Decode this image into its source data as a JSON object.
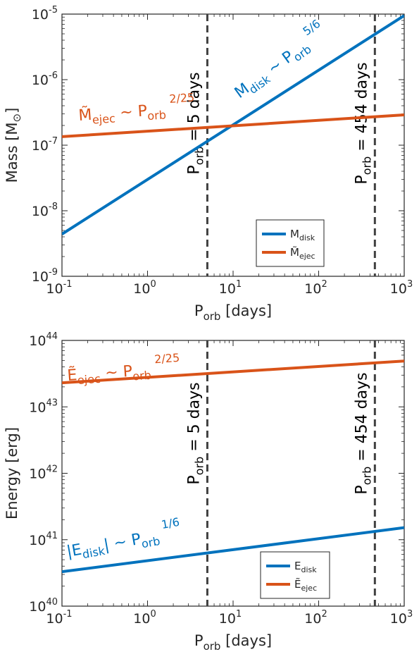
{
  "colors": {
    "disk": "#0072BD",
    "ejec": "#D95319",
    "vline": "#404040",
    "axis": "#262626"
  },
  "chart_data": [
    {
      "type": "line",
      "x_scale": "log",
      "y_scale": "log",
      "xlim": [
        0.1,
        1000
      ],
      "ylim": [
        1e-09,
        1e-05
      ],
      "x_ticks": [
        0.1,
        1,
        10,
        100,
        1000
      ],
      "x_tick_labels": [
        {
          "base": "10",
          "exp": "-1"
        },
        {
          "base": "10",
          "exp": "0"
        },
        {
          "base": "10",
          "exp": "1"
        },
        {
          "base": "10",
          "exp": "2"
        },
        {
          "base": "10",
          "exp": "3"
        }
      ],
      "y_ticks": [
        1e-09,
        1e-08,
        1e-07,
        1e-06,
        1e-05
      ],
      "y_tick_labels": [
        {
          "base": "10",
          "exp": "-9"
        },
        {
          "base": "10",
          "exp": "-8"
        },
        {
          "base": "10",
          "exp": "-7"
        },
        {
          "base": "10",
          "exp": "-6"
        },
        {
          "base": "10",
          "exp": "-5"
        }
      ],
      "xlabel": {
        "main": "P",
        "sub": "orb",
        "rest": " [days]"
      },
      "ylabel": {
        "main": "Mass [M",
        "sub": "⊙",
        "rest": "]"
      },
      "series": [
        {
          "name": {
            "main": "M",
            "sub": "disk"
          },
          "color_key": "disk",
          "x": [
            0.1,
            1000
          ],
          "y": [
            4.4e-09,
            9.5e-06
          ],
          "annotation": {
            "main": "M",
            "sub": "disk",
            "mid": " ~ P",
            "sub2": "orb",
            "sup": "5/6"
          }
        },
        {
          "name": {
            "main": "M̃",
            "sub": "ejec"
          },
          "color_key": "ejec",
          "x": [
            0.1,
            1000
          ],
          "y": [
            1.35e-07,
            2.9e-07
          ],
          "annotation": {
            "main": "M̃",
            "sub": "ejec",
            "mid": " ~ P",
            "sub2": "orb",
            "sup": "2/25"
          }
        }
      ],
      "vlines": [
        {
          "x": 5,
          "label": {
            "main": "P",
            "sub": "orb",
            "rest": " = 5 days"
          }
        },
        {
          "x": 454,
          "label": {
            "main": "P",
            "sub": "orb",
            "rest": " = 454 days"
          }
        }
      ],
      "legend_position": "lower-right",
      "grid": false
    },
    {
      "type": "line",
      "x_scale": "log",
      "y_scale": "log",
      "xlim": [
        0.1,
        1000
      ],
      "ylim": [
        1e+40,
        1e+44
      ],
      "x_ticks": [
        0.1,
        1,
        10,
        100,
        1000
      ],
      "x_tick_labels": [
        {
          "base": "10",
          "exp": "-1"
        },
        {
          "base": "10",
          "exp": "0"
        },
        {
          "base": "10",
          "exp": "1"
        },
        {
          "base": "10",
          "exp": "2"
        },
        {
          "base": "10",
          "exp": "3"
        }
      ],
      "y_ticks": [
        1e+40,
        1e+41,
        1e+42,
        1e+43,
        1e+44
      ],
      "y_tick_labels": [
        {
          "base": "10",
          "exp": "40"
        },
        {
          "base": "10",
          "exp": "41"
        },
        {
          "base": "10",
          "exp": "42"
        },
        {
          "base": "10",
          "exp": "43"
        },
        {
          "base": "10",
          "exp": "44"
        }
      ],
      "xlabel": {
        "main": "P",
        "sub": "orb",
        "rest": " [days]"
      },
      "ylabel": {
        "main": "Energy [erg]",
        "sub": "",
        "rest": ""
      },
      "series": [
        {
          "name": {
            "main": "E",
            "sub": "disk"
          },
          "color_key": "disk",
          "x": [
            0.1,
            1000
          ],
          "y": [
            3.3e+40,
            1.52e+41
          ],
          "annotation": {
            "main": "|E",
            "sub": "disk",
            "mid": "| ~ P",
            "sub2": "orb",
            "sup": "1/6"
          }
        },
        {
          "name": {
            "main": "Ẽ",
            "sub": "ejec"
          },
          "color_key": "ejec",
          "x": [
            0.1,
            1000
          ],
          "y": [
            2.3e+43,
            4.9e+43
          ],
          "annotation": {
            "main": "Ẽ",
            "sub": "ejec",
            "mid": " ~ P",
            "sub2": "orb",
            "sup": "2/25"
          }
        }
      ],
      "vlines": [
        {
          "x": 5,
          "label": {
            "main": "P",
            "sub": "orb",
            "rest": " = 5 days"
          }
        },
        {
          "x": 454,
          "label": {
            "main": "P",
            "sub": "orb",
            "rest": " = 454 days"
          }
        }
      ],
      "legend_position": "lower-right",
      "grid": false
    }
  ]
}
